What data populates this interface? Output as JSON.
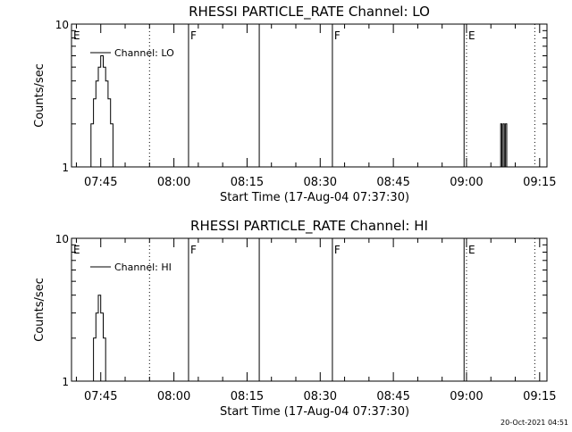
{
  "footer_timestamp": "20-Oct-2021 04:51",
  "chart_data": [
    {
      "type": "line",
      "title": "RHESSI PARTICLE_RATE Channel: LO",
      "xlabel": "Start Time (17-Aug-04 07:37:30)",
      "ylabel": "Counts/sec",
      "y_scale": "log",
      "ylim": [
        1,
        10
      ],
      "y_ticks": [
        {
          "value": 1,
          "label": "1"
        },
        {
          "value": 10,
          "label": "10"
        }
      ],
      "xlim": [
        "07:39:00",
        "09:16:30"
      ],
      "x_ticks": [
        "07:45",
        "08:00",
        "08:15",
        "08:30",
        "08:45",
        "09:00",
        "09:15"
      ],
      "legend": {
        "placement": "top-left",
        "entry": "Channel: LO"
      },
      "series": [
        {
          "name": "Channel: LO",
          "color": "#000000",
          "points": [
            [
              "07:39:00",
              2
            ],
            [
              "07:39:00",
              1
            ],
            [
              "07:40:30",
              1
            ],
            [
              "07:43:00",
              1
            ],
            [
              "07:43:00",
              2
            ],
            [
              "07:43:30",
              2
            ],
            [
              "07:43:30",
              3
            ],
            [
              "07:44:00",
              3
            ],
            [
              "07:44:00",
              4
            ],
            [
              "07:44:30",
              4
            ],
            [
              "07:44:30",
              5
            ],
            [
              "07:45:00",
              5
            ],
            [
              "07:45:00",
              6
            ],
            [
              "07:45:30",
              6
            ],
            [
              "07:45:30",
              5
            ],
            [
              "07:46:00",
              5
            ],
            [
              "07:46:00",
              4
            ],
            [
              "07:46:30",
              4
            ],
            [
              "07:46:30",
              3
            ],
            [
              "07:47:00",
              3
            ],
            [
              "07:47:00",
              2
            ],
            [
              "07:47:30",
              2
            ],
            [
              "07:47:30",
              1
            ],
            [
              "09:07:00",
              1
            ],
            [
              "09:07:00",
              2
            ],
            [
              "09:07:15",
              2
            ],
            [
              "09:07:15",
              1
            ],
            [
              "09:07:30",
              1
            ],
            [
              "09:07:30",
              2
            ],
            [
              "09:07:45",
              2
            ],
            [
              "09:07:45",
              1
            ],
            [
              "09:08:00",
              1
            ],
            [
              "09:08:00",
              2
            ],
            [
              "09:08:15",
              2
            ],
            [
              "09:08:15",
              1
            ],
            [
              "09:08:30",
              1
            ]
          ]
        }
      ],
      "markers": [
        {
          "time": "07:39:00",
          "label": "E",
          "style": "dotted"
        },
        {
          "time": "07:55:00",
          "label": "",
          "style": "dotted"
        },
        {
          "time": "08:03:00",
          "label": "F",
          "style": "solid"
        },
        {
          "time": "08:17:30",
          "label": "",
          "style": "solid"
        },
        {
          "time": "08:32:30",
          "label": "F",
          "style": "solid"
        },
        {
          "time": "08:59:30",
          "label": "",
          "style": "solid"
        },
        {
          "time": "09:00:00",
          "label": "E",
          "style": "dotted"
        },
        {
          "time": "09:14:00",
          "label": "",
          "style": "dotted"
        }
      ]
    },
    {
      "type": "line",
      "title": "RHESSI PARTICLE_RATE Channel: HI",
      "xlabel": "Start Time (17-Aug-04 07:37:30)",
      "ylabel": "Counts/sec",
      "y_scale": "log",
      "ylim": [
        1,
        10
      ],
      "y_ticks": [
        {
          "value": 1,
          "label": "1"
        },
        {
          "value": 10,
          "label": "10"
        }
      ],
      "xlim": [
        "07:39:00",
        "09:16:30"
      ],
      "x_ticks": [
        "07:45",
        "08:00",
        "08:15",
        "08:30",
        "08:45",
        "09:00",
        "09:15"
      ],
      "legend": {
        "placement": "top-left",
        "entry": "Channel: HI"
      },
      "series": [
        {
          "name": "Channel: HI",
          "color": "#000000",
          "points": [
            [
              "07:43:30",
              1
            ],
            [
              "07:43:30",
              2
            ],
            [
              "07:44:00",
              2
            ],
            [
              "07:44:00",
              3
            ],
            [
              "07:44:30",
              3
            ],
            [
              "07:44:30",
              4
            ],
            [
              "07:45:00",
              4
            ],
            [
              "07:45:00",
              3
            ],
            [
              "07:45:30",
              3
            ],
            [
              "07:45:30",
              2
            ],
            [
              "07:46:00",
              2
            ],
            [
              "07:46:00",
              1
            ]
          ]
        }
      ],
      "markers": [
        {
          "time": "07:39:00",
          "label": "E",
          "style": "dotted"
        },
        {
          "time": "07:55:00",
          "label": "",
          "style": "dotted"
        },
        {
          "time": "08:03:00",
          "label": "F",
          "style": "solid"
        },
        {
          "time": "08:17:30",
          "label": "",
          "style": "solid"
        },
        {
          "time": "08:32:30",
          "label": "F",
          "style": "solid"
        },
        {
          "time": "08:59:30",
          "label": "",
          "style": "solid"
        },
        {
          "time": "09:00:00",
          "label": "E",
          "style": "dotted"
        },
        {
          "time": "09:14:00",
          "label": "",
          "style": "dotted"
        }
      ]
    }
  ]
}
